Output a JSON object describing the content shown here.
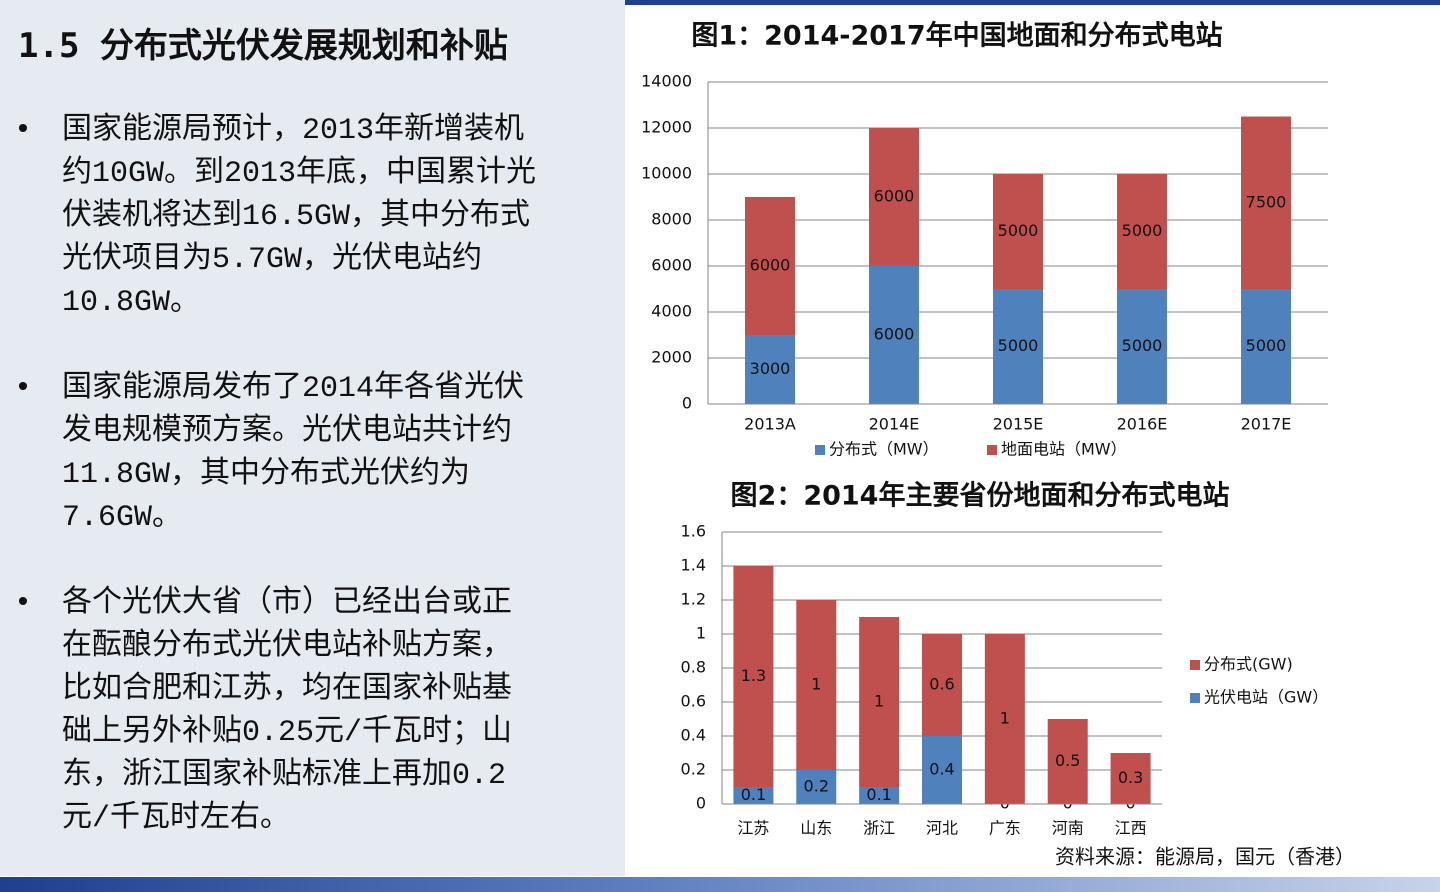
{
  "slide": {
    "title": "1.5 分布式光伏发展规划和补贴",
    "bullets": [
      [
        "国家能源局预计，2013年新增装机",
        "约10GW。到2013年底，中国累计光",
        "伏装机将达到16.5GW，其中分布式",
        "光伏项目为5.7GW，光伏电站约",
        "10.8GW。"
      ],
      [
        "国家能源局发布了2014年各省光伏",
        "发电规模预方案。光伏电站共计约",
        "11.8GW，其中分布式光伏约为",
        "7.6GW。"
      ],
      [
        "各个光伏大省（市）已经出台或正",
        "在酝酿分布式光伏电站补贴方案，",
        "比如合肥和江苏，均在国家补贴基",
        "础上另外补贴0.25元/千瓦时；山",
        "东，浙江国家补贴标准上再加0.2",
        "元/千瓦时左右。"
      ]
    ],
    "source": "资料来源：能源局，国元（香港）"
  },
  "chart_data": [
    {
      "type": "bar",
      "stacked": true,
      "title": "图1：2014-2017年中国地面和分布式电站",
      "categories": [
        "2013A",
        "2014E",
        "2015E",
        "2016E",
        "2017E"
      ],
      "series": [
        {
          "name": "分布式（MW）",
          "color": "#4f81bd",
          "values": [
            3000,
            6000,
            5000,
            5000,
            5000
          ]
        },
        {
          "name": "地面电站（MW）",
          "color": "#c0504d",
          "values": [
            6000,
            6000,
            5000,
            5000,
            7500
          ]
        }
      ],
      "ylim": [
        0,
        14000
      ],
      "yticks": [
        0,
        2000,
        4000,
        6000,
        8000,
        10000,
        12000,
        14000
      ],
      "grid": true,
      "legend": "bottom"
    },
    {
      "type": "bar",
      "stacked": true,
      "title": "图2：2014年主要省份地面和分布式电站",
      "categories": [
        "江苏",
        "山东",
        "浙江",
        "河北",
        "广东",
        "河南",
        "江西"
      ],
      "series": [
        {
          "name": "光伏电站（GW）",
          "color": "#4f81bd",
          "values": [
            0.1,
            0.2,
            0.1,
            0.4,
            0,
            0,
            0
          ]
        },
        {
          "name": "分布式(GW)",
          "color": "#c0504d",
          "values": [
            1.3,
            1,
            1,
            0.6,
            1,
            0.5,
            0.3
          ]
        }
      ],
      "ylim": [
        0,
        1.6
      ],
      "yticks": [
        0,
        0.2,
        0.4,
        0.6,
        0.8,
        1,
        1.2,
        1.4,
        1.6
      ],
      "grid": true,
      "legend": "right"
    }
  ]
}
